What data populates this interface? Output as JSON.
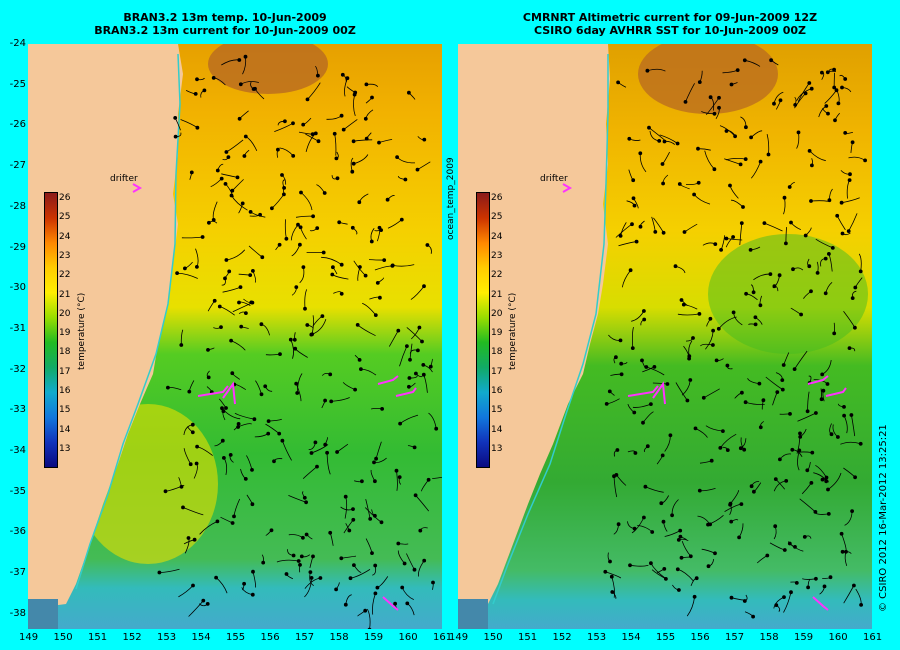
{
  "left_panel": {
    "title_line1": "BRAN3.2 13m temp. 10-Jun-2009",
    "title_line2": "BRAN3.2 13m current for 10-Jun-2009 00Z",
    "drifter_label": "drifter",
    "colorbar_label": "temperature (°C)"
  },
  "right_panel": {
    "title_line1": "CMRNRT Altimetric current for 09-Jun-2009 12Z",
    "title_line2": "CSIRO 6day AVHRR SST for 10-Jun-2009 00Z",
    "drifter_label": "drifter",
    "colorbar_label": "temperature (°C)"
  },
  "side_label": "ocean_temp_2009",
  "copyright": "© CSIRO 2012  16-Mar-2012 13:25:21",
  "lat_ticks": [
    "-24",
    "-25",
    "-26",
    "-27",
    "-28",
    "-29",
    "-30",
    "-31",
    "-32",
    "-33",
    "-34",
    "-35",
    "-36",
    "-37",
    "-38"
  ],
  "lon_ticks": [
    "149",
    "150",
    "151",
    "152",
    "153",
    "154",
    "155",
    "156",
    "157",
    "158",
    "159",
    "160",
    "161"
  ],
  "colorbar_ticks": [
    "26",
    "25",
    "24",
    "23",
    "22",
    "21",
    "20",
    "19",
    "18",
    "17",
    "16",
    "15",
    "14",
    "13"
  ],
  "colors": {
    "background": "#00ffff",
    "land": "#f5c89a",
    "drifter": "#ff33ff",
    "vectors": "#000000"
  }
}
